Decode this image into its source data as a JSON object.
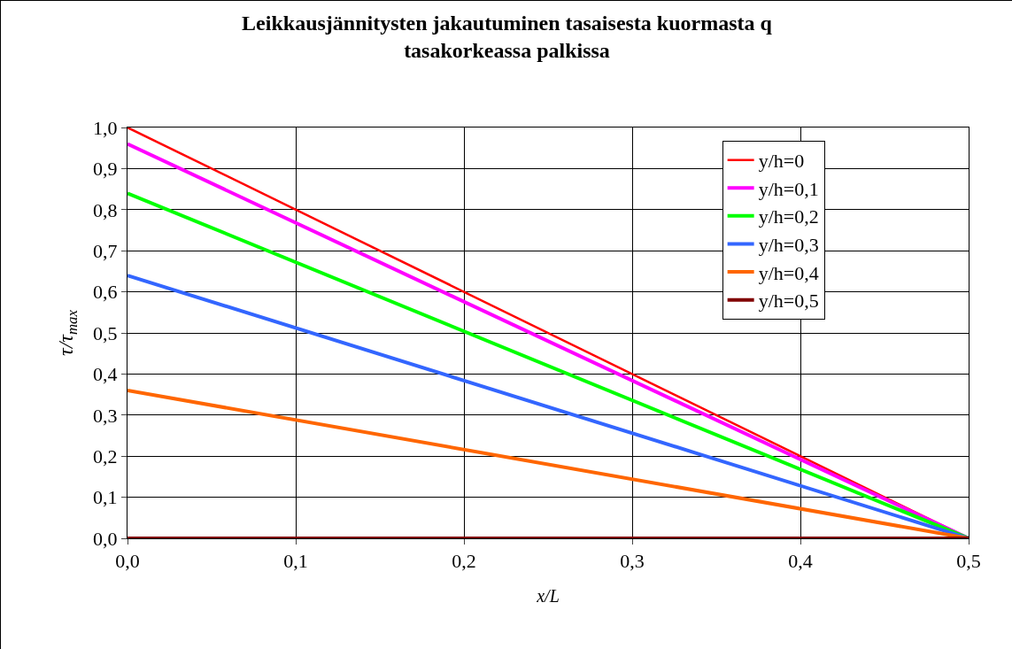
{
  "chart_data": {
    "type": "line",
    "title": "Leikkausjännitysten jakautuminen tasaisesta kuormasta q\ntasakorkeassa palkissa",
    "xlabel": "x/L",
    "ylabel": "τ/τ$_{max}$",
    "x": [
      0,
      0.5
    ],
    "series": [
      {
        "name": "y/h=0",
        "color": "#ff0000",
        "values": [
          1.0,
          0
        ]
      },
      {
        "name": "y/h=0,1",
        "color": "#ff00ff",
        "values": [
          0.96,
          0
        ]
      },
      {
        "name": "y/h=0,2",
        "color": "#00ff00",
        "values": [
          0.84,
          0
        ]
      },
      {
        "name": "y/h=0,3",
        "color": "#3366ff",
        "values": [
          0.64,
          0
        ]
      },
      {
        "name": "y/h=0,4",
        "color": "#ff6600",
        "values": [
          0.36,
          0
        ]
      },
      {
        "name": "y/h=0,5",
        "color": "#800000",
        "values": [
          0,
          0
        ]
      }
    ],
    "xlim": [
      0,
      0.5
    ],
    "xticks": [
      {
        "value": 0,
        "label": "0,0"
      },
      {
        "value": 0.1,
        "label": "0,1"
      },
      {
        "value": 0.2,
        "label": "0,2"
      },
      {
        "value": 0.3,
        "label": "0,3"
      },
      {
        "value": 0.4,
        "label": "0,4"
      },
      {
        "value": 0.5,
        "label": "0,5"
      }
    ],
    "ylim": [
      0,
      1
    ],
    "yticks": [
      {
        "value": 0,
        "label": "0,0"
      },
      {
        "value": 0.1,
        "label": "0,1"
      },
      {
        "value": 0.2,
        "label": "0,2"
      },
      {
        "value": 0.3,
        "label": "0,3"
      },
      {
        "value": 0.4,
        "label": "0,4"
      },
      {
        "value": 0.5,
        "label": "0,5"
      },
      {
        "value": 0.6,
        "label": "0,6"
      },
      {
        "value": 0.7,
        "label": "0,7"
      },
      {
        "value": 0.8,
        "label": "0,8"
      },
      {
        "value": 0.9,
        "label": "0,9"
      },
      {
        "value": 1,
        "label": "1,0"
      }
    ],
    "grid": true,
    "legend": "top right",
    "marker": "none",
    "line_style": "solid"
  }
}
